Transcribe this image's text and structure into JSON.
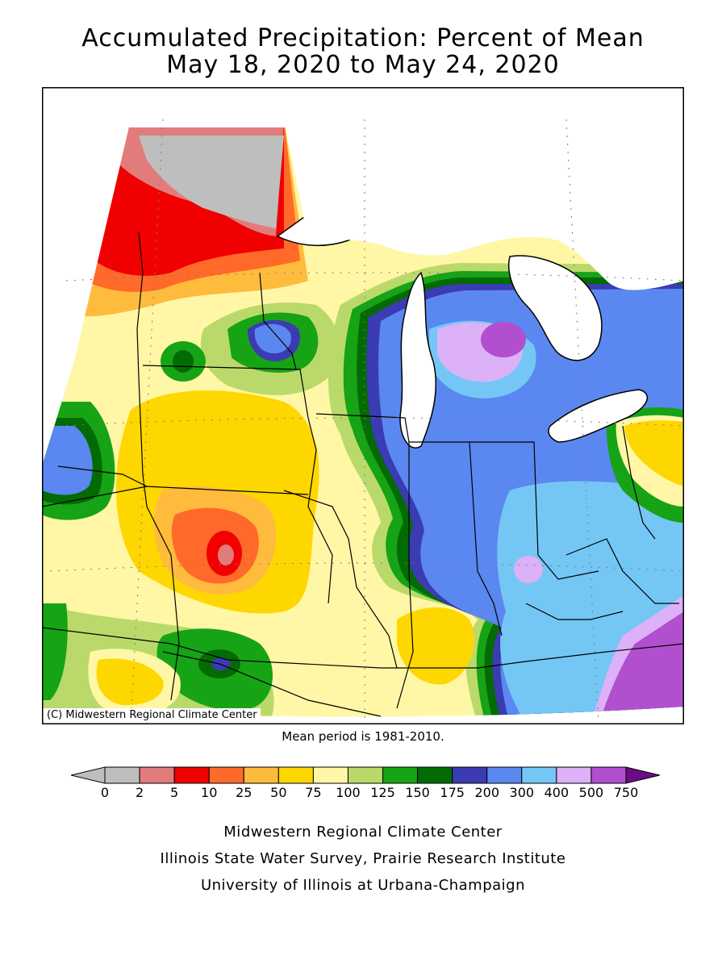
{
  "header": {
    "title_line1": "Accumulated Precipitation: Percent of Mean",
    "title_line2": "May 18, 2020 to May 24, 2020"
  },
  "map": {
    "copyright": "(C) Midwestern Regional Climate Center",
    "mean_period": "Mean period is 1981-2010."
  },
  "legend": {
    "thresholds": [
      "0",
      "2",
      "5",
      "10",
      "25",
      "50",
      "75",
      "100",
      "125",
      "150",
      "175",
      "200",
      "300",
      "400",
      "500",
      "750"
    ],
    "colors": [
      "#bebebe",
      "#e27c7c",
      "#f00000",
      "#ff6a2a",
      "#ffbb3c",
      "#ffd700",
      "#fff7a6",
      "#b9da6a",
      "#16a316",
      "#036b03",
      "#3b3bb2",
      "#5b87f0",
      "#74c7f5",
      "#dcb1f7",
      "#b14fcf"
    ],
    "under_color": "#bebebe",
    "over_color": "#6b0d86"
  },
  "credits": {
    "line1": "Midwestern Regional Climate Center",
    "line2": "Illinois State Water Survey, Prairie Research Institute",
    "line3": "University of Illinois at Urbana-Champaign"
  }
}
